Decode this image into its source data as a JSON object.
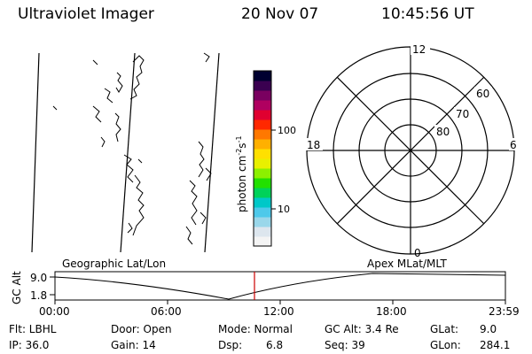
{
  "header": {
    "title": "Ultraviolet Imager",
    "date": "20 Nov 07",
    "time": "10:45:56 UT"
  },
  "colorbar": {
    "label": "photon cm",
    "label_sup1": "-2",
    "label_s": "s",
    "label_sup2": "-1",
    "ticks": [
      "100",
      "10"
    ],
    "colors": [
      "#f4f4f4",
      "#dde6ee",
      "#9ad7ea",
      "#4ec9ea",
      "#00c8c8",
      "#00d25a",
      "#22e000",
      "#8cf000",
      "#e8f000",
      "#ffe000",
      "#ffb000",
      "#ff7800",
      "#ff2800",
      "#e00030",
      "#b00060",
      "#7a0060",
      "#3a0050",
      "#000030"
    ]
  },
  "polar_plot": {
    "labels": {
      "top": "12",
      "bottom": "0",
      "left": "18",
      "right": "6"
    },
    "lat_labels": [
      "60",
      "70",
      "80"
    ]
  },
  "timeline": {
    "left_label": "Geographic Lat/Lon",
    "right_label": "Apex MLat/MLT",
    "y_axis_label": "GC Alt",
    "y_ticks": [
      "9.0",
      "1.8"
    ],
    "x_ticks": [
      "00:00",
      "06:00",
      "12:00",
      "18:00",
      "23:59"
    ],
    "current_time_color": "#cc0000"
  },
  "status": {
    "flt": "Flt: LBHL",
    "ip": "IP: 36.0",
    "door": "Door: Open",
    "gain": "Gain: 14",
    "mode": "Mode: Normal",
    "dsp_label": "Dsp:",
    "dsp_value": "6.8",
    "gc_alt": "GC Alt: 3.4 Re",
    "seq": "Seq: 39",
    "glat_label": "GLat:",
    "glat_value": "9.0",
    "glon_label": "GLon:",
    "glon_value": "284.1"
  }
}
